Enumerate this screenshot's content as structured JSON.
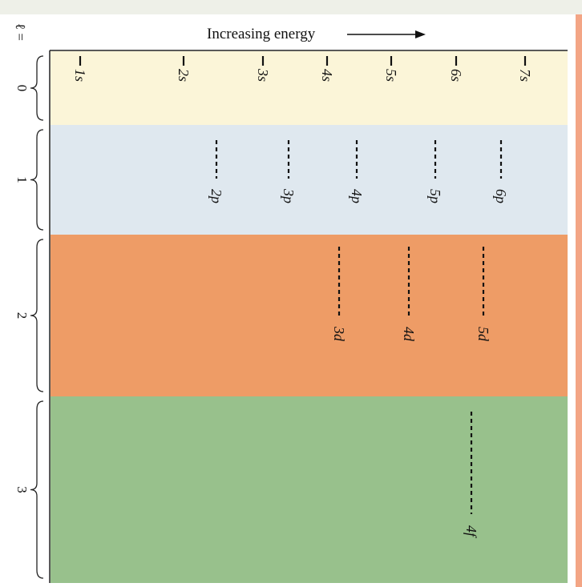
{
  "header": {
    "l_label": "ℓ =",
    "energy_label": "Increasing energy"
  },
  "colors": {
    "top_strip": "#eef0e8",
    "right_edge": "#f3a585",
    "band_l0": "#fbf5d8",
    "band_l1": "#dfe8ef",
    "band_l2": "#ee9c66",
    "band_l3": "#98c18c",
    "ink": "#111111"
  },
  "bands": [
    {
      "l": "0",
      "color_key": "band_l0"
    },
    {
      "l": "1",
      "color_key": "band_l1"
    },
    {
      "l": "2",
      "color_key": "band_l2"
    },
    {
      "l": "3",
      "color_key": "band_l3"
    }
  ],
  "orbitals": {
    "s": [
      "1s",
      "2s",
      "3s",
      "4s",
      "5s",
      "6s",
      "7s"
    ],
    "p": [
      "2p",
      "3p",
      "4p",
      "5p",
      "6p"
    ],
    "d": [
      "3d",
      "4d",
      "5d"
    ],
    "f": [
      "4f"
    ]
  }
}
